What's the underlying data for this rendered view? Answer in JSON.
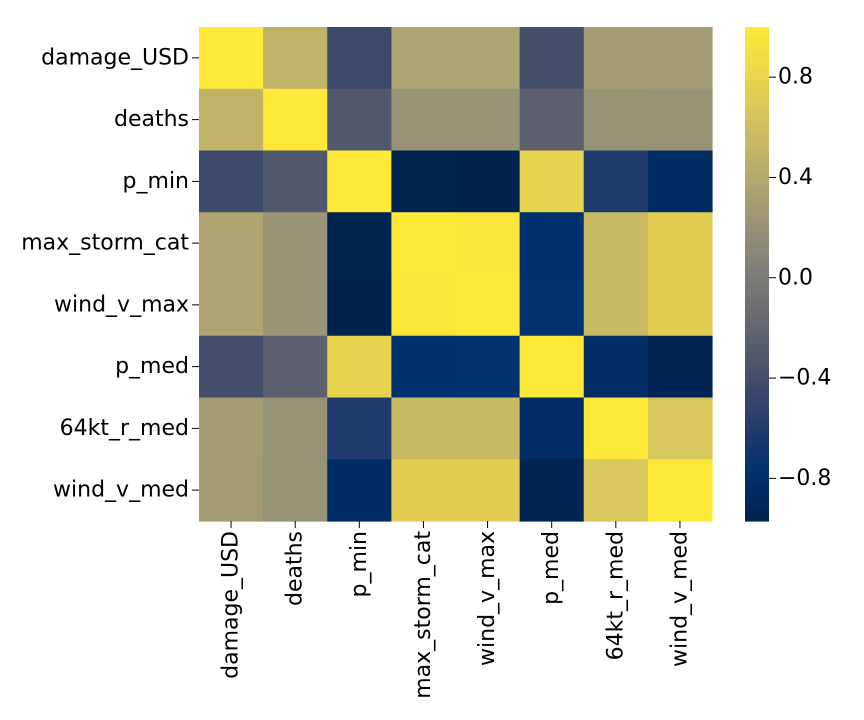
{
  "chart_data": {
    "type": "heatmap",
    "colormap": "cividis",
    "x_categories": [
      "damage_USD",
      "deaths",
      "p_min",
      "max_storm_cat",
      "wind_v_max",
      "p_med",
      "64kt_r_med",
      "wind_v_med"
    ],
    "y_categories": [
      "damage_USD",
      "deaths",
      "p_min",
      "max_storm_cat",
      "wind_v_max",
      "p_med",
      "64kt_r_med",
      "wind_v_med"
    ],
    "matrix": [
      [
        1.0,
        0.5,
        -0.45,
        0.36,
        0.36,
        -0.4,
        0.3,
        0.28
      ],
      [
        0.5,
        1.0,
        -0.32,
        0.22,
        0.22,
        -0.25,
        0.2,
        0.2
      ],
      [
        -0.45,
        -0.32,
        1.0,
        -0.96,
        -0.97,
        0.78,
        -0.62,
        -0.85
      ],
      [
        0.36,
        0.22,
        -0.96,
        1.0,
        0.98,
        -0.78,
        0.55,
        0.73
      ],
      [
        0.36,
        0.22,
        -0.97,
        0.98,
        1.0,
        -0.77,
        0.55,
        0.73
      ],
      [
        -0.4,
        -0.25,
        0.78,
        -0.78,
        -0.77,
        1.0,
        -0.84,
        -0.93
      ],
      [
        0.3,
        0.2,
        -0.62,
        0.55,
        0.55,
        -0.84,
        1.0,
        0.66
      ],
      [
        0.28,
        0.2,
        -0.85,
        0.73,
        0.73,
        -0.93,
        0.66,
        1.0
      ]
    ],
    "vmin": -0.97,
    "vmax": 1.0,
    "colorbar": {
      "ticks": [
        0.8,
        0.4,
        0.0,
        -0.4,
        -0.8
      ],
      "tick_labels": [
        "0.8",
        "0.4",
        "0.0",
        "−0.4",
        "−0.8"
      ]
    },
    "title": "",
    "xlabel": "",
    "ylabel": ""
  }
}
